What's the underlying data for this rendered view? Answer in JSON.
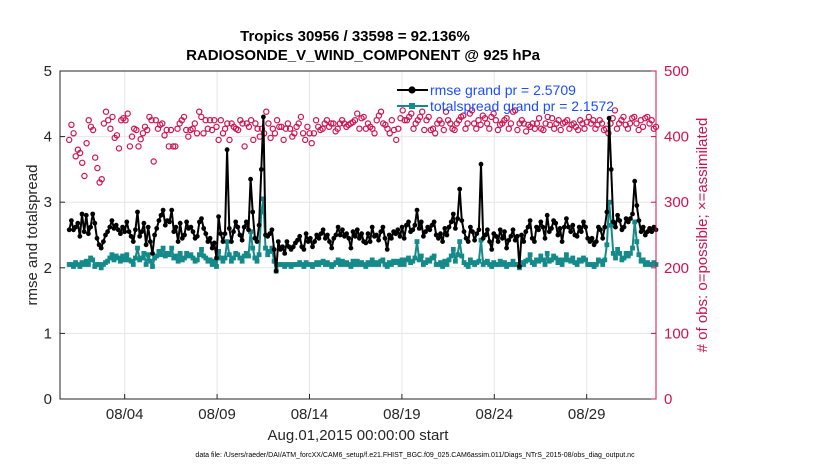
{
  "chart_data": {
    "type": "line",
    "title_line1": "Tropics 30956 / 33598 = 92.136%",
    "title_line2": "RADIOSONDE_V_WIND_COMPONENT @ 925 hPa",
    "xlabel": "Aug.01,2015 00:00:00 start",
    "ylabel_left": "rmse and totalspread",
    "ylabel_right": "# of obs: o=possible; ×=assimilated",
    "footer": "data file: /Users/raeder/DAI/ATM_forcXX/CAM6_setup/f.e21.FHIST_BGC.f09_025.CAM6assim.011/Diags_NTrS_2015-08/obs_diag_output.nc",
    "xlim": [
      0.5,
      32.75
    ],
    "ylim_left": [
      0,
      5
    ],
    "ylim_right": [
      0,
      500
    ],
    "xticks": [
      4,
      9,
      14,
      19,
      24,
      29
    ],
    "xtick_labels": [
      "08/04",
      "08/09",
      "08/14",
      "08/19",
      "08/24",
      "08/29"
    ],
    "yticks_left": [
      0,
      1,
      2,
      3,
      4,
      5
    ],
    "ytick_labels_left": [
      "0",
      "1",
      "2",
      "3",
      "4",
      "5"
    ],
    "yticks_right": [
      0,
      100,
      200,
      300,
      400,
      500
    ],
    "ytick_labels_right": [
      "0",
      "100",
      "200",
      "300",
      "400",
      "500"
    ],
    "colors": {
      "rmse": "#000000",
      "spread": "#148a8a",
      "obs": "#cc1452",
      "legend_text": "#1a4dff",
      "grid": "#e6e6e6"
    },
    "series": [
      {
        "name": "rmse",
        "legend": "rmse grand pr = 2.5709",
        "values": [
          2.58,
          2.72,
          2.58,
          2.62,
          2.68,
          2.48,
          2.82,
          2.55,
          2.8,
          2.52,
          2.62,
          2.82,
          2.68,
          2.45,
          2.35,
          2.3,
          2.4,
          2.5,
          2.55,
          2.62,
          2.72,
          2.6,
          2.65,
          2.58,
          2.52,
          2.62,
          2.55,
          2.7,
          2.55,
          2.48,
          2.4,
          2.58,
          2.85,
          2.48,
          2.55,
          2.68,
          2.35,
          2.62,
          2.4,
          2.22,
          2.5,
          2.6,
          2.72,
          2.8,
          2.88,
          2.65,
          2.72,
          2.7,
          2.88,
          2.55,
          2.62,
          2.4,
          2.68,
          2.45,
          2.5,
          2.7,
          2.6,
          2.62,
          2.55,
          2.45,
          2.48,
          2.7,
          2.75,
          2.6,
          2.52,
          2.4,
          2.45,
          2.3,
          2.38,
          2.15,
          2.78,
          2.52,
          2.4,
          2.52,
          3.8,
          2.6,
          2.4,
          2.55,
          2.7,
          2.62,
          2.5,
          2.42,
          2.62,
          2.7,
          2.58,
          3.35,
          2.85,
          2.45,
          2.4,
          2.65,
          3.5,
          4.3,
          2.5,
          2.48,
          2.52,
          2.58,
          2.28,
          1.95,
          2.4,
          2.28,
          2.32,
          2.22,
          2.4,
          2.32,
          2.28,
          2.32,
          2.38,
          2.42,
          2.48,
          2.32,
          2.28,
          2.52,
          2.4,
          2.45,
          2.32,
          2.4,
          2.5,
          2.45,
          2.52,
          2.58,
          2.45,
          2.5,
          2.4,
          2.3,
          2.45,
          2.5,
          2.62,
          2.5,
          2.58,
          2.48,
          2.52,
          2.45,
          2.3,
          2.55,
          2.48,
          2.58,
          2.45,
          2.52,
          2.4,
          2.38,
          2.52,
          2.4,
          2.62,
          2.48,
          2.5,
          2.42,
          2.55,
          2.62,
          2.45,
          2.28,
          2.5,
          2.45,
          2.55,
          2.52,
          2.58,
          2.48,
          2.62,
          2.45,
          2.65,
          2.7,
          2.55,
          2.58,
          2.65,
          2.88,
          2.6,
          2.7,
          2.48,
          2.55,
          2.62,
          2.58,
          2.65,
          2.7,
          2.5,
          2.45,
          2.52,
          2.4,
          2.6,
          2.5,
          2.62,
          2.7,
          2.82,
          2.6,
          2.75,
          3.2,
          2.72,
          2.55,
          2.45,
          2.4,
          2.62,
          2.55,
          2.42,
          2.52,
          2.58,
          3.58,
          2.45,
          2.5,
          2.58,
          2.4,
          2.28,
          2.52,
          2.48,
          2.4,
          2.58,
          2.45,
          2.55,
          2.3,
          2.42,
          2.48,
          2.58,
          2.42,
          2.48,
          2.02,
          2.5,
          2.4,
          2.55,
          2.62,
          2.72,
          2.45,
          2.4,
          2.62,
          2.58,
          2.7,
          2.62,
          2.45,
          2.8,
          2.55,
          2.6,
          2.72,
          2.68,
          2.5,
          2.6,
          2.4,
          2.62,
          2.75,
          2.62,
          2.55,
          2.65,
          2.5,
          2.48,
          2.62,
          2.55,
          2.7,
          2.62,
          2.45,
          2.4,
          2.45,
          2.35,
          2.4,
          2.62,
          2.58,
          2.45,
          2.62,
          2.85,
          4.28,
          3.5,
          2.7,
          2.62,
          2.8,
          2.72,
          2.58,
          2.62,
          2.75,
          2.7,
          2.75,
          2.82,
          3.32,
          2.95,
          2.72,
          2.55,
          2.62,
          2.5,
          2.55,
          2.6,
          2.55,
          2.62,
          2.58
        ]
      },
      {
        "name": "totalspread",
        "legend": "totalspread grand pr = 2.1572",
        "values": [
          2.05,
          2.05,
          2.02,
          2.08,
          2.05,
          2.02,
          2.08,
          2.05,
          2.1,
          2.05,
          2.15,
          2.12,
          2.02,
          2.05,
          2.05,
          2.0,
          2.05,
          2.08,
          2.1,
          2.15,
          2.2,
          2.12,
          2.18,
          2.15,
          2.1,
          2.18,
          2.12,
          2.2,
          2.12,
          2.1,
          2.05,
          2.15,
          2.3,
          2.12,
          2.15,
          2.22,
          2.05,
          2.2,
          2.1,
          2.02,
          2.15,
          2.18,
          2.25,
          2.2,
          2.3,
          2.18,
          2.22,
          2.2,
          2.3,
          2.15,
          2.18,
          2.1,
          2.22,
          2.12,
          2.15,
          2.22,
          2.18,
          2.2,
          2.15,
          2.1,
          2.12,
          2.2,
          2.28,
          2.18,
          2.15,
          2.1,
          2.12,
          2.05,
          2.1,
          2.02,
          2.25,
          2.15,
          2.1,
          2.15,
          2.4,
          2.2,
          2.1,
          2.15,
          2.22,
          2.2,
          2.15,
          2.1,
          2.18,
          2.22,
          2.18,
          2.55,
          2.3,
          2.15,
          2.1,
          2.2,
          2.85,
          3.05,
          2.3,
          2.2,
          2.25,
          2.3,
          2.1,
          1.95,
          2.05,
          2.05,
          2.05,
          2.02,
          2.05,
          2.05,
          2.02,
          2.05,
          2.05,
          2.05,
          2.08,
          2.05,
          2.02,
          2.08,
          2.05,
          2.05,
          2.02,
          2.05,
          2.08,
          2.05,
          2.08,
          2.1,
          2.05,
          2.08,
          2.05,
          2.02,
          2.05,
          2.08,
          2.12,
          2.05,
          2.1,
          2.05,
          2.08,
          2.05,
          2.02,
          2.1,
          2.05,
          2.1,
          2.05,
          2.08,
          2.05,
          2.02,
          2.08,
          2.05,
          2.12,
          2.05,
          2.08,
          2.05,
          2.1,
          2.12,
          2.05,
          2.02,
          2.08,
          2.05,
          2.1,
          2.08,
          2.1,
          2.05,
          2.12,
          2.05,
          2.12,
          2.15,
          2.08,
          2.1,
          2.15,
          2.4,
          2.12,
          2.18,
          2.05,
          2.08,
          2.12,
          2.1,
          2.15,
          2.18,
          2.05,
          2.05,
          2.08,
          2.02,
          2.1,
          2.05,
          2.12,
          2.18,
          2.28,
          2.1,
          2.2,
          2.4,
          2.18,
          2.08,
          2.05,
          2.02,
          2.12,
          2.08,
          2.05,
          2.08,
          2.1,
          2.42,
          2.05,
          2.08,
          2.1,
          2.05,
          2.02,
          2.08,
          2.05,
          2.05,
          2.1,
          2.05,
          2.08,
          2.02,
          2.05,
          2.05,
          2.1,
          2.05,
          2.05,
          2.0,
          2.08,
          2.05,
          2.1,
          2.12,
          2.2,
          2.08,
          2.05,
          2.12,
          2.1,
          2.18,
          2.12,
          2.05,
          2.22,
          2.1,
          2.12,
          2.18,
          2.15,
          2.08,
          2.12,
          2.05,
          2.12,
          2.2,
          2.12,
          2.1,
          2.15,
          2.08,
          2.05,
          2.12,
          2.1,
          2.15,
          2.12,
          2.05,
          2.05,
          2.05,
          2.02,
          2.05,
          2.12,
          2.1,
          2.05,
          2.12,
          2.35,
          3.0,
          2.65,
          2.22,
          2.15,
          2.28,
          2.22,
          2.12,
          2.15,
          2.22,
          2.18,
          2.22,
          2.3,
          2.7,
          2.4,
          2.2,
          2.1,
          2.12,
          2.05,
          2.08,
          2.05,
          2.05,
          2.08,
          2.05
        ]
      },
      {
        "name": "obs_possible",
        "marker": "o",
        "values": [
          395,
          418,
          405,
          370,
          380,
          375,
          360,
          340,
          390,
          425,
          415,
          410,
          368,
          352,
          330,
          335,
          420,
          438,
          425,
          412,
          430,
          398,
          402,
          382,
          425,
          428,
          425,
          435,
          385,
          400,
          412,
          410,
          385,
          396,
          405,
          415,
          410,
          430,
          425,
          362,
          425,
          412,
          418,
          420,
          402,
          410,
          385,
          410,
          385,
          385,
          412,
          420,
          425,
          430,
          410,
          400,
          410,
          412,
          420,
          405,
          438,
          430,
          405,
          425,
          412,
          425,
          410,
          425,
          415,
          395,
          425,
          405,
          412,
          420,
          395,
          420,
          415,
          412,
          410,
          425,
          420,
          385,
          420,
          415,
          425,
          395,
          420,
          412,
          400,
          412,
          405,
          438,
          420,
          398,
          412,
          405,
          425,
          415,
          415,
          395,
          412,
          420,
          412,
          400,
          405,
          415,
          420,
          430,
          405,
          395,
          415,
          405,
          390,
          405,
          425,
          415,
          410,
          412,
          420,
          425,
          415,
          420,
          420,
          408,
          412,
          420,
          425,
          420,
          415,
          418,
          420,
          422,
          425,
          435,
          412,
          428,
          430,
          412,
          420,
          415,
          412,
          405,
          425,
          432,
          438,
          420,
          418,
          412,
          405,
          425,
          410,
          395,
          412,
          428,
          440,
          425,
          425,
          430,
          435,
          412,
          420,
          425,
          430,
          438,
          410,
          425,
          430,
          410,
          412,
          405,
          420,
          425,
          420,
          410,
          438,
          425,
          420,
          412,
          410,
          420,
          425,
          430,
          432,
          412,
          420,
          435,
          440,
          420,
          412,
          425,
          418,
          432,
          428,
          420,
          412,
          430,
          435,
          425,
          410,
          418,
          420,
          425,
          428,
          412,
          420,
          438,
          440,
          410,
          420,
          425,
          420,
          408,
          418,
          415,
          420,
          412,
          420,
          428,
          412,
          410,
          420,
          430,
          418,
          428,
          412,
          420,
          425,
          410,
          420,
          422,
          425,
          412,
          418,
          420,
          415,
          410,
          425,
          420,
          412,
          422,
          430,
          420,
          425,
          412,
          418,
          425,
          420,
          410,
          412,
          405,
          420,
          428,
          440,
          412,
          420,
          425,
          430,
          418,
          412,
          420,
          428,
          430,
          420,
          410,
          425,
          415,
          428,
          430,
          420,
          425,
          412,
          415
        ],
        "note": "upper cloud of circles (approx. 340-440)"
      }
    ]
  }
}
